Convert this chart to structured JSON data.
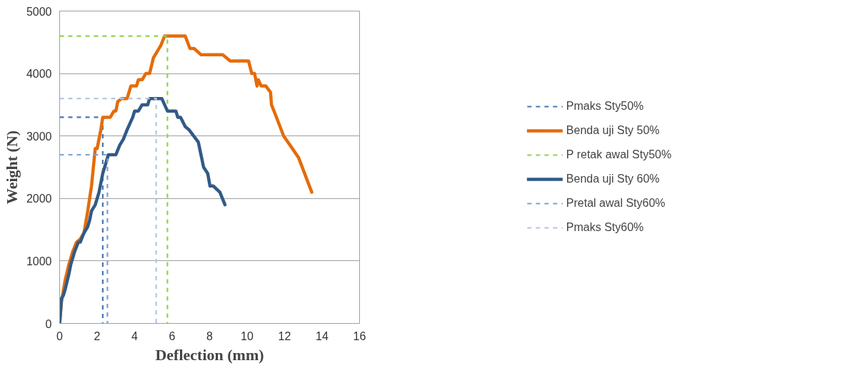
{
  "chart_data": {
    "type": "line",
    "xlabel": "Deflection (mm)",
    "ylabel": "Weight (N)",
    "xlim": [
      0,
      16
    ],
    "ylim": [
      0,
      5000
    ],
    "xticks": [
      0,
      2,
      4,
      6,
      8,
      10,
      12,
      14,
      16
    ],
    "yticks": [
      0,
      1000,
      2000,
      3000,
      4000,
      5000
    ],
    "grid": "y",
    "legend": "right",
    "marker": "none",
    "series": [
      {
        "name": "Pmaks Sty50%",
        "color": "#4a76b0",
        "line_style": "dashed",
        "x": [
          0,
          2.3,
          2.3
        ],
        "values": [
          3300,
          3300,
          0
        ]
      },
      {
        "name": "Benda uji Sty 50%",
        "color": "#e46c0a",
        "line_style": "solid",
        "x": [
          0,
          0.1,
          0.3,
          0.5,
          0.7,
          0.9,
          1.1,
          1.3,
          1.5,
          1.7,
          1.8,
          1.9,
          2.0,
          2.2,
          2.3,
          2.7,
          2.9,
          3.0,
          3.1,
          3.3,
          3.6,
          3.8,
          4.1,
          4.2,
          4.4,
          4.6,
          4.8,
          5.0,
          5.4,
          5.6,
          6.7,
          6.95,
          7.17,
          7.55,
          8.7,
          9.1,
          10.08,
          10.25,
          10.4,
          10.53,
          10.6,
          10.75,
          11.0,
          11.25,
          11.3,
          11.5,
          11.95,
          12.3,
          12.75,
          13.45
        ],
        "values": [
          0,
          350,
          700,
          950,
          1150,
          1300,
          1350,
          1450,
          1800,
          2200,
          2500,
          2800,
          2800,
          3100,
          3300,
          3300,
          3400,
          3400,
          3550,
          3600,
          3600,
          3800,
          3800,
          3900,
          3900,
          4000,
          4000,
          4250,
          4450,
          4600,
          4600,
          4400,
          4400,
          4300,
          4300,
          4200,
          4200,
          4000,
          4000,
          3800,
          3900,
          3800,
          3800,
          3700,
          3500,
          3350,
          3000,
          2850,
          2650,
          2100
        ]
      },
      {
        "name": "P retak awal Sty50%",
        "color": "#92d050",
        "line_style": "dashed",
        "x": [
          0,
          5.75,
          5.75
        ],
        "values": [
          4600,
          4600,
          0
        ]
      },
      {
        "name": "Benda uji Sty 60%",
        "color": "#325a87",
        "line_style": "solid",
        "x": [
          0,
          0.1,
          0.2,
          0.3,
          0.5,
          0.6,
          0.8,
          1.0,
          1.1,
          1.3,
          1.5,
          1.6,
          1.7,
          1.9,
          2.1,
          2.3,
          2.5,
          2.6,
          3.0,
          3.2,
          3.4,
          3.6,
          3.9,
          4.0,
          4.2,
          4.4,
          4.7,
          4.8,
          5.45,
          5.75,
          6.2,
          6.3,
          6.45,
          6.7,
          6.9,
          7.4,
          7.68,
          7.9,
          8.02,
          8.2,
          8.55,
          8.82
        ],
        "values": [
          0,
          400,
          450,
          550,
          800,
          950,
          1150,
          1300,
          1300,
          1450,
          1550,
          1650,
          1800,
          1900,
          2100,
          2400,
          2600,
          2700,
          2700,
          2850,
          2950,
          3100,
          3300,
          3400,
          3400,
          3500,
          3500,
          3600,
          3600,
          3400,
          3400,
          3300,
          3300,
          3150,
          3100,
          2900,
          2500,
          2400,
          2200,
          2200,
          2100,
          1900
        ]
      },
      {
        "name": "Pretal awal Sty60%",
        "color": "#7f9fcf",
        "line_style": "dashed",
        "x": [
          0,
          2.55,
          2.55
        ],
        "values": [
          2700,
          2700,
          0
        ]
      },
      {
        "name": "Pmaks Sty60%",
        "color": "#b4c6e4",
        "line_style": "dashed",
        "x": [
          0,
          5.15,
          5.15
        ],
        "values": [
          3600,
          3600,
          0
        ]
      }
    ]
  }
}
